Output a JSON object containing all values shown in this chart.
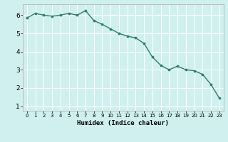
{
  "x": [
    0,
    1,
    2,
    3,
    4,
    5,
    6,
    7,
    8,
    9,
    10,
    11,
    12,
    13,
    14,
    15,
    16,
    17,
    18,
    19,
    20,
    21,
    22,
    23
  ],
  "y": [
    5.85,
    6.1,
    6.0,
    5.95,
    6.0,
    6.1,
    6.0,
    6.25,
    5.7,
    5.5,
    5.25,
    5.0,
    4.85,
    4.75,
    4.45,
    3.7,
    3.25,
    3.0,
    3.2,
    3.0,
    2.95,
    2.75,
    2.2,
    1.45
  ],
  "xlabel": "Humidex (Indice chaleur)",
  "xlim": [
    -0.5,
    23.5
  ],
  "ylim": [
    0.75,
    6.6
  ],
  "xticks": [
    0,
    1,
    2,
    3,
    4,
    5,
    6,
    7,
    8,
    9,
    10,
    11,
    12,
    13,
    14,
    15,
    16,
    17,
    18,
    19,
    20,
    21,
    22,
    23
  ],
  "yticks": [
    1,
    2,
    3,
    4,
    5,
    6
  ],
  "line_color": "#2e7d6e",
  "marker_color": "#2e7d6e",
  "bg_color": "#cff0ee",
  "grid_color": "#ffffff"
}
